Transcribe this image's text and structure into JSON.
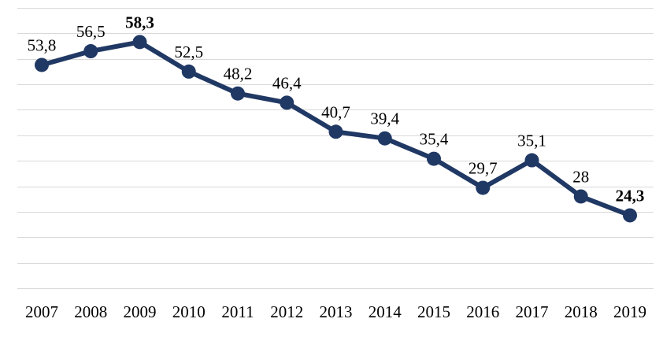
{
  "chart_data": {
    "type": "line",
    "title": "",
    "xlabel": "",
    "ylabel": "",
    "categories": [
      "2007",
      "2008",
      "2009",
      "2010",
      "2011",
      "2012",
      "2013",
      "2014",
      "2015",
      "2016",
      "2017",
      "2018",
      "2019"
    ],
    "series": [
      {
        "values": [
          53.8,
          56.5,
          58.3,
          52.5,
          48.2,
          46.4,
          40.7,
          39.4,
          35.4,
          29.7,
          35.1,
          28,
          24.3
        ],
        "labels": [
          "53,8",
          "56,5",
          "58,3",
          "52,5",
          "48,2",
          "46,4",
          "40,7",
          "39,4",
          "35,4",
          "29,7",
          "35,1",
          "28",
          "24,3"
        ],
        "bold_labels": [
          "2009",
          "2019"
        ],
        "color": "#203864"
      }
    ],
    "ylim": [
      10,
      65
    ],
    "y_gridlines": [
      15,
      20,
      25,
      30,
      35,
      40,
      45,
      50,
      55,
      60,
      65
    ],
    "grid": true,
    "legend": "none"
  }
}
